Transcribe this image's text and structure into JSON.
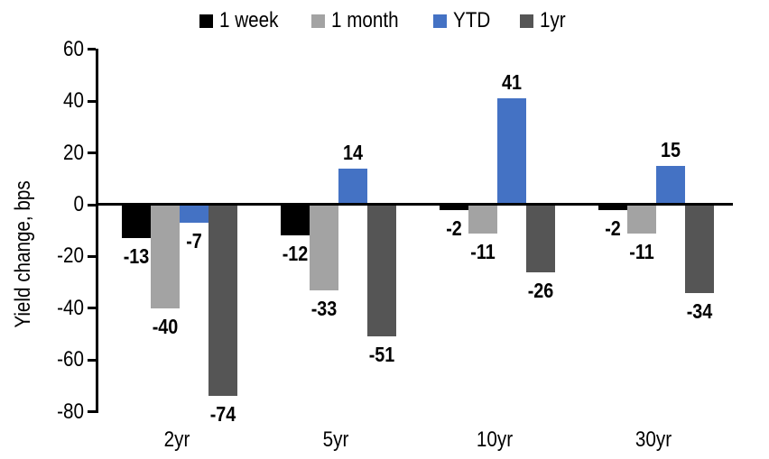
{
  "chart_data": {
    "type": "bar",
    "title": "",
    "ylabel": "Yield change, bps",
    "xlabel": "",
    "categories": [
      "2yr",
      "5yr",
      "10yr",
      "30yr"
    ],
    "series": [
      {
        "name": "1 week",
        "color": "#000000",
        "values": [
          -13,
          -12,
          -2,
          -2
        ]
      },
      {
        "name": "1 month",
        "color": "#A3A3A3",
        "values": [
          -40,
          -33,
          -11,
          -11
        ]
      },
      {
        "name": "YTD",
        "color": "#4472C4",
        "values": [
          -7,
          14,
          41,
          15
        ]
      },
      {
        "name": "1yr",
        "color": "#555555",
        "values": [
          -74,
          -51,
          -26,
          -34
        ]
      }
    ],
    "ylim": [
      -80,
      60
    ],
    "yticks": [
      60,
      40,
      20,
      0,
      -20,
      -40,
      -60,
      -80
    ],
    "grid": false,
    "legend_position": "top",
    "axis_color": "#000000",
    "background_color": "#FFFFFF"
  }
}
